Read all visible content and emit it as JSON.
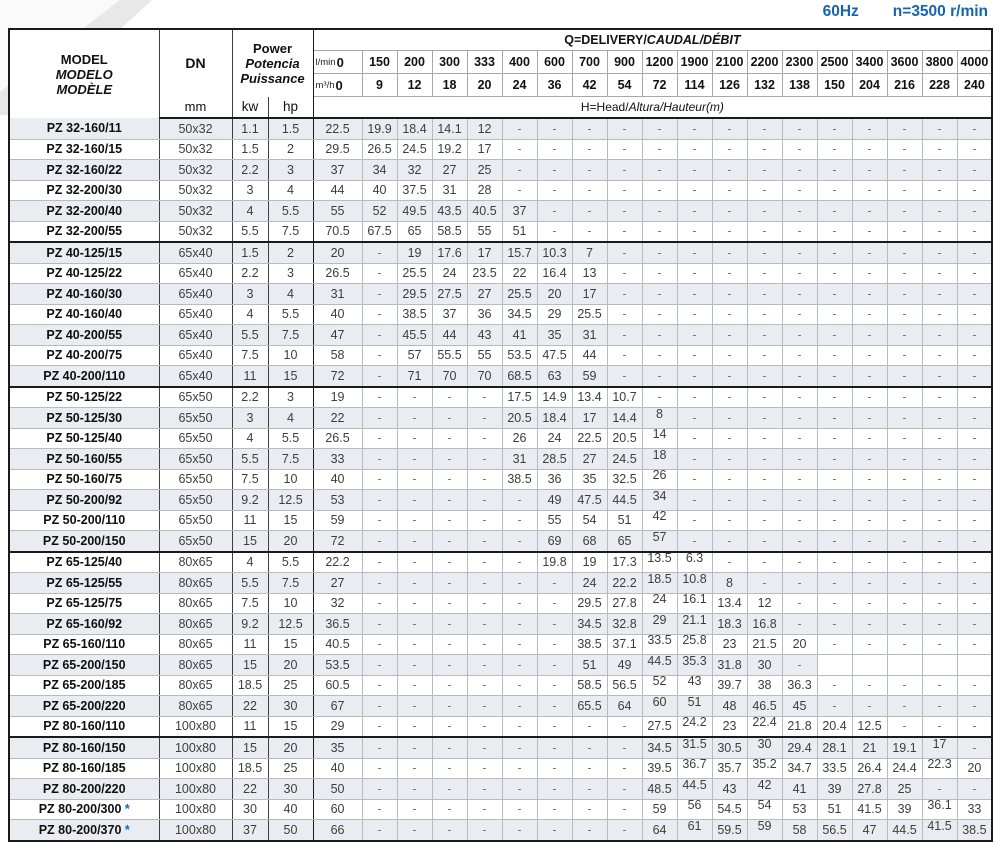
{
  "page": {
    "frequency": "60Hz",
    "speed": "n=3500 r/min",
    "accent_color": "#1464b4",
    "stripe_color": "#e9edf2"
  },
  "header": {
    "model_en": "MODEL",
    "model_es": "MODELO",
    "model_fr": "MODÈLE",
    "dn": "DN",
    "dn_unit": "mm",
    "power_en": "Power",
    "power_es": "Potencia",
    "power_fr": "Puissance",
    "power_units": [
      "kw",
      "hp"
    ],
    "q_title_en": "Q=DELIVERY/",
    "q_title_intl": "CAUDAL/DÉBIT",
    "flow_lmin_label": "l/min",
    "flow_m3h_label": "m³/h",
    "flow_lmin": [
      "0",
      "150",
      "200",
      "300",
      "333",
      "400",
      "600",
      "700",
      "900",
      "1200",
      "1900",
      "2100",
      "2200",
      "2300",
      "2500",
      "3400",
      "3600",
      "3800",
      "4000"
    ],
    "flow_m3h": [
      "0",
      "9",
      "12",
      "18",
      "20",
      "24",
      "36",
      "42",
      "54",
      "72",
      "114",
      "126",
      "132",
      "138",
      "150",
      "204",
      "216",
      "228",
      "240"
    ],
    "head_title_en": "H=Head/",
    "head_title_intl": "Altura/Hauteur",
    "head_title_unit": "(m)"
  },
  "rows": [
    {
      "model": "PZ 32-160/11",
      "dn": "50x32",
      "kw": "1.1",
      "hp": "1.5",
      "group_end": false,
      "heads": [
        "22.5",
        "19.9",
        "18.4",
        "14.1",
        "12",
        "-",
        "-",
        "-",
        "-",
        "-",
        "-",
        "-",
        "-",
        "-",
        "-",
        "-",
        "-",
        "-",
        "-"
      ]
    },
    {
      "model": "PZ 32-160/15",
      "dn": "50x32",
      "kw": "1.5",
      "hp": "2",
      "group_end": false,
      "heads": [
        "29.5",
        "26.5",
        "24.5",
        "19.2",
        "17",
        "-",
        "-",
        "-",
        "-",
        "-",
        "-",
        "-",
        "-",
        "-",
        "-",
        "-",
        "-",
        "-",
        "-"
      ]
    },
    {
      "model": "PZ 32-160/22",
      "dn": "50x32",
      "kw": "2.2",
      "hp": "3",
      "group_end": false,
      "heads": [
        "37",
        "34",
        "32",
        "27",
        "25",
        "-",
        "-",
        "-",
        "-",
        "-",
        "-",
        "-",
        "-",
        "-",
        "-",
        "-",
        "-",
        "-",
        "-"
      ]
    },
    {
      "model": "PZ 32-200/30",
      "dn": "50x32",
      "kw": "3",
      "hp": "4",
      "group_end": false,
      "heads": [
        "44",
        "40",
        "37.5",
        "31",
        "28",
        "-",
        "-",
        "-",
        "-",
        "-",
        "-",
        "-",
        "-",
        "-",
        "-",
        "-",
        "-",
        "-",
        "-"
      ]
    },
    {
      "model": "PZ 32-200/40",
      "dn": "50x32",
      "kw": "4",
      "hp": "5.5",
      "group_end": false,
      "heads": [
        "55",
        "52",
        "49.5",
        "43.5",
        "40.5",
        "37",
        "-",
        "-",
        "-",
        "-",
        "-",
        "-",
        "-",
        "-",
        "-",
        "-",
        "-",
        "-",
        "-"
      ]
    },
    {
      "model": "PZ 32-200/55",
      "dn": "50x32",
      "kw": "5.5",
      "hp": "7.5",
      "group_end": true,
      "heads": [
        "70.5",
        "67.5",
        "65",
        "58.5",
        "55",
        "51",
        "-",
        "-",
        "-",
        "-",
        "-",
        "-",
        "-",
        "-",
        "-",
        "-",
        "-",
        "-",
        "-"
      ]
    },
    {
      "model": "PZ 40-125/15",
      "dn": "65x40",
      "kw": "1.5",
      "hp": "2",
      "group_end": false,
      "heads": [
        "20",
        "-",
        "19",
        "17.6",
        "17",
        "15.7",
        "10.3",
        "7",
        "-",
        "-",
        "-",
        "-",
        "-",
        "-",
        "-",
        "-",
        "-",
        "-",
        "-"
      ]
    },
    {
      "model": "PZ 40-125/22",
      "dn": "65x40",
      "kw": "2.2",
      "hp": "3",
      "group_end": false,
      "heads": [
        "26.5",
        "-",
        "25.5",
        "24",
        "23.5",
        "22",
        "16.4",
        "13",
        "-",
        "-",
        "-",
        "-",
        "-",
        "-",
        "-",
        "-",
        "-",
        "-",
        "-"
      ]
    },
    {
      "model": "PZ 40-160/30",
      "dn": "65x40",
      "kw": "3",
      "hp": "4",
      "group_end": false,
      "heads": [
        "31",
        "-",
        "29.5",
        "27.5",
        "27",
        "25.5",
        "20",
        "17",
        "-",
        "-",
        "-",
        "-",
        "-",
        "-",
        "-",
        "-",
        "-",
        "-",
        "-"
      ]
    },
    {
      "model": "PZ 40-160/40",
      "dn": "65x40",
      "kw": "4",
      "hp": "5.5",
      "group_end": false,
      "heads": [
        "40",
        "-",
        "38.5",
        "37",
        "36",
        "34.5",
        "29",
        "25.5",
        "-",
        "-",
        "-",
        "-",
        "-",
        "-",
        "-",
        "-",
        "-",
        "-",
        "-"
      ]
    },
    {
      "model": "PZ 40-200/55",
      "dn": "65x40",
      "kw": "5.5",
      "hp": "7.5",
      "group_end": false,
      "heads": [
        "47",
        "-",
        "45.5",
        "44",
        "43",
        "41",
        "35",
        "31",
        "-",
        "-",
        "-",
        "-",
        "-",
        "-",
        "-",
        "-",
        "-",
        "-",
        "-"
      ]
    },
    {
      "model": "PZ 40-200/75",
      "dn": "65x40",
      "kw": "7.5",
      "hp": "10",
      "group_end": false,
      "heads": [
        "58",
        "-",
        "57",
        "55.5",
        "55",
        "53.5",
        "47.5",
        "44",
        "-",
        "-",
        "-",
        "-",
        "-",
        "-",
        "-",
        "-",
        "-",
        "-",
        "-"
      ]
    },
    {
      "model": "PZ 40-200/110",
      "dn": "65x40",
      "kw": "11",
      "hp": "15",
      "group_end": true,
      "heads": [
        "72",
        "-",
        "71",
        "70",
        "70",
        "68.5",
        "63",
        "59",
        "-",
        "-",
        "-",
        "-",
        "-",
        "-",
        "-",
        "-",
        "-",
        "-",
        "-"
      ]
    },
    {
      "model": "PZ 50-125/22",
      "dn": "65x50",
      "kw": "2.2",
      "hp": "3",
      "group_end": false,
      "heads": [
        "19",
        "-",
        "-",
        "-",
        "-",
        "17.5",
        "14.9",
        "13.4",
        "10.7",
        "-",
        "-",
        "-",
        "-",
        "-",
        "-",
        "-",
        "-",
        "-",
        "-"
      ]
    },
    {
      "model": "PZ 50-125/30",
      "dn": "65x50",
      "kw": "3",
      "hp": "4",
      "group_end": false,
      "heads": [
        "22",
        "-",
        "-",
        "-",
        "-",
        "20.5",
        "18.4",
        "17",
        "14.4",
        {
          "v": "8",
          "r": 1
        },
        "-",
        "-",
        "-",
        "-",
        "-",
        "-",
        "-",
        "-",
        "-"
      ]
    },
    {
      "model": "PZ 50-125/40",
      "dn": "65x50",
      "kw": "4",
      "hp": "5.5",
      "group_end": false,
      "heads": [
        "26.5",
        "-",
        "-",
        "-",
        "-",
        "26",
        "24",
        "22.5",
        "20.5",
        {
          "v": "14",
          "r": 1
        },
        "-",
        "-",
        "-",
        "-",
        "-",
        "-",
        "-",
        "-",
        "-"
      ]
    },
    {
      "model": "PZ 50-160/55",
      "dn": "65x50",
      "kw": "5.5",
      "hp": "7.5",
      "group_end": false,
      "heads": [
        "33",
        "-",
        "-",
        "-",
        "-",
        "31",
        "28.5",
        "27",
        "24.5",
        {
          "v": "18",
          "r": 1
        },
        "-",
        "-",
        "-",
        "-",
        "-",
        "-",
        "-",
        "-",
        "-"
      ]
    },
    {
      "model": "PZ 50-160/75",
      "dn": "65x50",
      "kw": "7.5",
      "hp": "10",
      "group_end": false,
      "heads": [
        "40",
        "-",
        "-",
        "-",
        "-",
        "38.5",
        "36",
        "35",
        "32.5",
        {
          "v": "26",
          "r": 1
        },
        "-",
        "-",
        "-",
        "-",
        "-",
        "-",
        "-",
        "-",
        "-"
      ]
    },
    {
      "model": "PZ 50-200/92",
      "dn": "65x50",
      "kw": "9.2",
      "hp": "12.5",
      "group_end": false,
      "heads": [
        "53",
        "-",
        "-",
        "-",
        "-",
        "-",
        "49",
        "47.5",
        "44.5",
        {
          "v": "34",
          "r": 1
        },
        "-",
        "-",
        "-",
        "-",
        "-",
        "-",
        "-",
        "-",
        "-"
      ]
    },
    {
      "model": "PZ 50-200/110",
      "dn": "65x50",
      "kw": "11",
      "hp": "15",
      "group_end": false,
      "heads": [
        "59",
        "-",
        "-",
        "-",
        "-",
        "-",
        "55",
        "54",
        "51",
        {
          "v": "42",
          "r": 1
        },
        "-",
        "-",
        "-",
        "-",
        "-",
        "-",
        "-",
        "-",
        "-"
      ]
    },
    {
      "model": "PZ 50-200/150",
      "dn": "65x50",
      "kw": "15",
      "hp": "20",
      "group_end": true,
      "heads": [
        "72",
        "-",
        "-",
        "-",
        "-",
        "-",
        "69",
        "68",
        "65",
        {
          "v": "57",
          "r": 1
        },
        "-",
        "-",
        "-",
        "-",
        "-",
        "-",
        "-",
        "-",
        "-"
      ]
    },
    {
      "model": "PZ 65-125/40",
      "dn": "80x65",
      "kw": "4",
      "hp": "5.5",
      "group_end": false,
      "heads": [
        "22.2",
        "-",
        "-",
        "-",
        "-",
        "-",
        "19.8",
        "19",
        "17.3",
        {
          "v": "13.5",
          "r": 1
        },
        {
          "v": "6.3",
          "r": 1
        },
        "-",
        "-",
        "-",
        "-",
        "-",
        "-",
        "-",
        "-"
      ]
    },
    {
      "model": "PZ 65-125/55",
      "dn": "80x65",
      "kw": "5.5",
      "hp": "7.5",
      "group_end": false,
      "heads": [
        "27",
        "-",
        "-",
        "-",
        "-",
        "-",
        "-",
        "24",
        "22.2",
        {
          "v": "18.5",
          "r": 1
        },
        {
          "v": "10.8",
          "r": 1
        },
        "8",
        "-",
        "-",
        "-",
        "-",
        "-",
        "-",
        "-"
      ]
    },
    {
      "model": "PZ 65-125/75",
      "dn": "80x65",
      "kw": "7.5",
      "hp": "10",
      "group_end": false,
      "heads": [
        "32",
        "-",
        "-",
        "-",
        "-",
        "-",
        "-",
        "29.5",
        "27.8",
        {
          "v": "24",
          "r": 1
        },
        {
          "v": "16.1",
          "r": 1
        },
        "13.4",
        "12",
        "-",
        "-",
        "-",
        "-",
        "-",
        "-"
      ]
    },
    {
      "model": "PZ 65-160/92",
      "dn": "80x65",
      "kw": "9.2",
      "hp": "12.5",
      "group_end": false,
      "heads": [
        "36.5",
        "-",
        "-",
        "-",
        "-",
        "-",
        "-",
        "34.5",
        "32.8",
        {
          "v": "29",
          "r": 1
        },
        {
          "v": "21.1",
          "r": 1
        },
        "18.3",
        "16.8",
        "-",
        "-",
        "-",
        "-",
        "-",
        "-"
      ]
    },
    {
      "model": "PZ 65-160/110",
      "dn": "80x65",
      "kw": "11",
      "hp": "15",
      "group_end": false,
      "heads": [
        "40.5",
        "-",
        "-",
        "-",
        "-",
        "-",
        "-",
        "38.5",
        "37.1",
        {
          "v": "33.5",
          "r": 1
        },
        {
          "v": "25.8",
          "r": 1
        },
        "23",
        "21.5",
        "20",
        "-",
        "-",
        "-",
        "-",
        "-"
      ]
    },
    {
      "model": "PZ 65-200/150",
      "dn": "80x65",
      "kw": "15",
      "hp": "20",
      "group_end": false,
      "heads": [
        "53.5",
        "-",
        "-",
        "-",
        "-",
        "-",
        "-",
        "51",
        "49",
        {
          "v": "44.5",
          "r": 1
        },
        {
          "v": "35.3",
          "r": 1
        },
        "31.8",
        "30",
        "-",
        "",
        "",
        "",
        "",
        ""
      ]
    },
    {
      "model": "PZ 65-200/185",
      "dn": "80x65",
      "kw": "18.5",
      "hp": "25",
      "group_end": false,
      "heads": [
        "60.5",
        "-",
        "-",
        "-",
        "-",
        "-",
        "-",
        "58.5",
        "56.5",
        {
          "v": "52",
          "r": 1
        },
        {
          "v": "43",
          "r": 1
        },
        "39.7",
        "38",
        "36.3",
        "-",
        "-",
        "-",
        "-",
        "-"
      ]
    },
    {
      "model": "PZ 65-200/220",
      "dn": "80x65",
      "kw": "22",
      "hp": "30",
      "group_end": false,
      "heads": [
        "67",
        "-",
        "-",
        "-",
        "-",
        "-",
        "-",
        "65.5",
        "64",
        {
          "v": "60",
          "r": 1
        },
        {
          "v": "51",
          "r": 1
        },
        "48",
        "46.5",
        "45",
        "-",
        "-",
        "-",
        "-",
        "-"
      ]
    },
    {
      "model": "PZ 80-160/110",
      "dn": "100x80",
      "kw": "11",
      "hp": "15",
      "group_end": true,
      "heads": [
        "29",
        "-",
        "-",
        "-",
        "-",
        "-",
        "-",
        "-",
        "-",
        "27.5",
        {
          "v": "24.2",
          "r": 1
        },
        "23",
        {
          "v": "22.4",
          "r": 1
        },
        "21.8",
        "20.4",
        "12.5",
        "-",
        "-",
        "-"
      ]
    },
    {
      "model": "PZ 80-160/150",
      "dn": "100x80",
      "kw": "15",
      "hp": "20",
      "group_end": false,
      "heads": [
        "35",
        "-",
        "-",
        "-",
        "-",
        "-",
        "-",
        "-",
        "-",
        "34.5",
        {
          "v": "31.5",
          "r": 1
        },
        "30.5",
        {
          "v": "30",
          "r": 1
        },
        "29.4",
        "28.1",
        "21",
        "19.1",
        {
          "v": "17",
          "r": 1
        },
        "-"
      ]
    },
    {
      "model": "PZ 80-160/185",
      "dn": "100x80",
      "kw": "18.5",
      "hp": "25",
      "group_end": false,
      "heads": [
        "40",
        "-",
        "-",
        "-",
        "-",
        "-",
        "-",
        "-",
        "-",
        "39.5",
        {
          "v": "36.7",
          "r": 1
        },
        "35.7",
        {
          "v": "35.2",
          "r": 1
        },
        "34.7",
        "33.5",
        "26.4",
        "24.4",
        {
          "v": "22.3",
          "r": 1
        },
        "20"
      ]
    },
    {
      "model": "PZ 80-200/220",
      "dn": "100x80",
      "kw": "22",
      "hp": "30",
      "group_end": false,
      "heads": [
        "50",
        "-",
        "-",
        "-",
        "-",
        "-",
        "-",
        "-",
        "-",
        "48.5",
        {
          "v": "44.5",
          "r": 1
        },
        "43",
        {
          "v": "42",
          "r": 1
        },
        "41",
        "39",
        "27.8",
        "25",
        "-",
        "-"
      ]
    },
    {
      "model": "PZ 80-200/300",
      "star": "*",
      "dn": "100x80",
      "kw": "30",
      "hp": "40",
      "group_end": false,
      "heads": [
        "60",
        "-",
        "-",
        "-",
        "-",
        "-",
        "-",
        "-",
        "-",
        "59",
        {
          "v": "56",
          "r": 1
        },
        "54.5",
        {
          "v": "54",
          "r": 1
        },
        "53",
        "51",
        "41.5",
        "39",
        {
          "v": "36.1",
          "r": 1
        },
        "33"
      ]
    },
    {
      "model": "PZ 80-200/370",
      "star": "*",
      "dn": "100x80",
      "kw": "37",
      "hp": "50",
      "group_end": false,
      "heads": [
        "66",
        "-",
        "-",
        "-",
        "-",
        "-",
        "-",
        "-",
        "-",
        "64",
        {
          "v": "61",
          "r": 1
        },
        "59.5",
        {
          "v": "59",
          "r": 1
        },
        "58",
        "56.5",
        "47",
        "44.5",
        {
          "v": "41.5",
          "r": 1
        },
        "38.5"
      ]
    }
  ]
}
